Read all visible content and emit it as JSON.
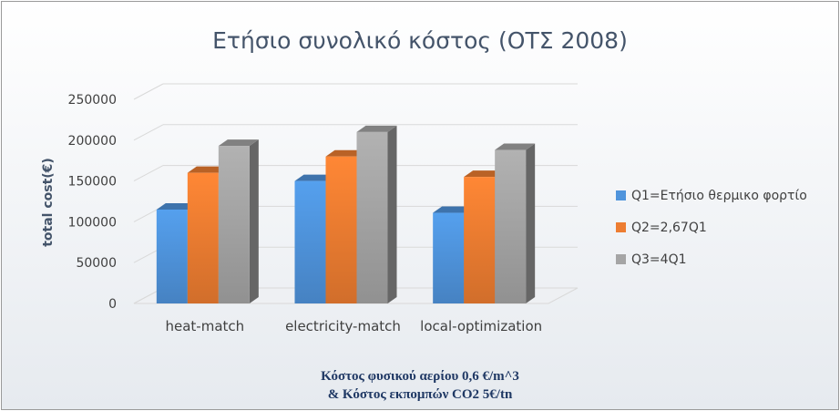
{
  "chart_data": {
    "type": "bar",
    "title": "Ετήσιο συνολικό κόστος (ΟΤΣ 2008)",
    "xlabel": "",
    "ylabel": "total cost(€)",
    "categories": [
      "heat-match",
      "electricity-match",
      "local-optimization"
    ],
    "series": [
      {
        "name": "Q1=Ετήσιο θερμικο φορτίο",
        "values": [
          115000,
          150000,
          111000
        ],
        "color": "#4f94dc"
      },
      {
        "name": "Q2=2,67Q1",
        "values": [
          160000,
          180000,
          155000
        ],
        "color": "#ed7d31"
      },
      {
        "name": "Q3=4Q1",
        "values": [
          193000,
          210000,
          188000
        ],
        "color": "#a5a5a5"
      }
    ],
    "ylim": [
      0,
      250000
    ],
    "yticks": [
      "0",
      "50000",
      "100000",
      "150000",
      "200000",
      "250000"
    ],
    "style": "3d-clustered-column",
    "grid": true,
    "legend_position": "right"
  },
  "caption": {
    "line1": "Κόστος φυσικού αερίου 0,6 €/m^3",
    "line2": "& Κόστος εκπομπών CO2 5€/tn"
  }
}
